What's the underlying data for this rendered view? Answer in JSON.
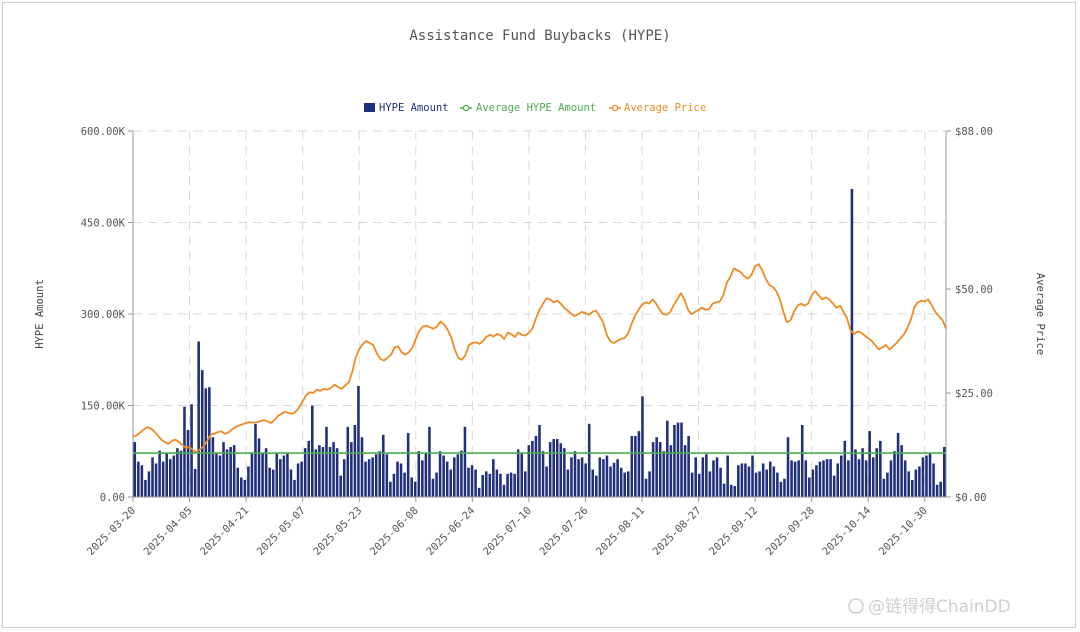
{
  "chart_data": {
    "type": "bar+line",
    "title": "Assistance Fund Buybacks (HYPE)",
    "ylabel_left": "HYPE Amount",
    "ylabel_right": "Average Price",
    "y_left_ticks": [
      "0.00",
      "150.00K",
      "300.00K",
      "450.00K",
      "600.00K"
    ],
    "y_right_ticks": [
      "$0.00",
      "$25.00",
      "$50.00",
      "$88.00"
    ],
    "y_right_tick_values": [
      0,
      25,
      50,
      88
    ],
    "ylim_left": [
      0,
      600000
    ],
    "ylim_right": [
      0,
      88
    ],
    "x_start": "2025-03-20",
    "x_end": "2025-11-05",
    "x_ticks": [
      "2025-03-20",
      "2025-04-05",
      "2025-04-21",
      "2025-05-07",
      "2025-05-23",
      "2025-06-08",
      "2025-06-24",
      "2025-07-10",
      "2025-07-26",
      "2025-08-11",
      "2025-08-27",
      "2025-09-12",
      "2025-09-28",
      "2025-10-14",
      "2025-10-30"
    ],
    "grid": true,
    "legend_position": "top-center",
    "series": [
      {
        "name": "HYPE Amount",
        "type": "bar",
        "color": "#1f2f7a",
        "values": [
          90000,
          58000,
          52000,
          28000,
          42000,
          65000,
          55000,
          76000,
          58000,
          72000,
          62000,
          68000,
          80000,
          76000,
          148000,
          110000,
          152000,
          46000,
          255000,
          208000,
          178000,
          180000,
          98000,
          72000,
          68000,
          90000,
          78000,
          82000,
          85000,
          48000,
          32000,
          28000,
          50000,
          72000,
          120000,
          96000,
          72000,
          80000,
          48000,
          45000,
          72000,
          62000,
          68000,
          72000,
          45000,
          28000,
          55000,
          58000,
          80000,
          92000,
          150000,
          78000,
          85000,
          82000,
          115000,
          82000,
          90000,
          80000,
          35000,
          62000,
          115000,
          90000,
          118000,
          182000,
          98000,
          58000,
          62000,
          65000,
          70000,
          75000,
          102000,
          70000,
          25000,
          38000,
          58000,
          55000,
          40000,
          105000,
          32000,
          25000,
          75000,
          60000,
          72000,
          115000,
          30000,
          40000,
          75000,
          68000,
          58000,
          45000,
          65000,
          70000,
          76000,
          115000,
          48000,
          52000,
          45000,
          15000,
          36000,
          42000,
          38000,
          62000,
          45000,
          38000,
          20000,
          38000,
          40000,
          38000,
          78000,
          72000,
          42000,
          85000,
          92000,
          100000,
          118000,
          75000,
          50000,
          90000,
          95000,
          95000,
          88000,
          80000,
          45000,
          65000,
          75000,
          62000,
          65000,
          55000,
          120000,
          45000,
          35000,
          65000,
          62000,
          68000,
          50000,
          56000,
          62000,
          48000,
          40000,
          42000,
          100000,
          100000,
          108000,
          165000,
          30000,
          42000,
          90000,
          98000,
          90000,
          75000,
          125000,
          85000,
          118000,
          122000,
          122000,
          85000,
          100000,
          40000,
          65000,
          38000,
          65000,
          70000,
          42000,
          60000,
          65000,
          48000,
          22000,
          68000,
          20000,
          18000,
          52000,
          55000,
          55000,
          50000,
          68000,
          40000,
          42000,
          55000,
          45000,
          58000,
          50000,
          40000,
          25000,
          30000,
          98000,
          60000,
          58000,
          60000,
          118000,
          60000,
          32000,
          45000,
          52000,
          58000,
          60000,
          62000,
          62000,
          35000,
          55000,
          68000,
          92000,
          60000,
          505000,
          78000,
          62000,
          80000,
          60000,
          108000,
          65000,
          80000,
          92000,
          30000,
          40000,
          60000,
          75000,
          105000,
          85000,
          60000,
          42000,
          28000,
          45000,
          50000,
          65000,
          68000,
          72000,
          55000,
          20000,
          25000,
          82000
        ]
      },
      {
        "name": "Average HYPE Amount",
        "type": "line",
        "color": "#4caf50",
        "value": 72000
      },
      {
        "name": "Average Price",
        "type": "line",
        "color": "#f08a24",
        "values": [
          14.5,
          14.8,
          15.5,
          16.2,
          16.8,
          16.5,
          15.8,
          14.8,
          13.8,
          13.2,
          12.8,
          13.5,
          13.8,
          13.2,
          12.5,
          11.8,
          12.0,
          11.2,
          10.8,
          11.5,
          12.2,
          13.5,
          15.0,
          15.2,
          15.6,
          15.8,
          15.2,
          15.5,
          16.2,
          16.8,
          17.2,
          17.5,
          17.8,
          18.0,
          17.9,
          18.0,
          18.2,
          18.5,
          18.2,
          17.8,
          18.5,
          19.5,
          20.0,
          20.5,
          20.2,
          20.0,
          20.5,
          21.5,
          23.0,
          24.5,
          25.2,
          25.0,
          25.8,
          25.5,
          26.0,
          25.8,
          26.2,
          27.0,
          26.5,
          26.0,
          26.8,
          27.5,
          30.0,
          33.5,
          35.5,
          36.8,
          37.5,
          37.0,
          36.5,
          34.5,
          33.2,
          32.8,
          33.5,
          34.2,
          36.0,
          36.2,
          34.8,
          34.2,
          34.8,
          35.8,
          38.0,
          40.0,
          41.0,
          41.2,
          40.8,
          40.5,
          41.0,
          42.2,
          41.5,
          40.2,
          38.5,
          35.5,
          33.5,
          33.0,
          34.0,
          36.5,
          37.0,
          37.2,
          36.8,
          37.5,
          38.5,
          39.0,
          38.6,
          39.2,
          38.9,
          38.0,
          39.5,
          39.2,
          38.5,
          39.5,
          39.0,
          38.8,
          39.5,
          40.5,
          43.0,
          45.0,
          46.5,
          47.8,
          47.5,
          46.8,
          47.2,
          46.5,
          45.5,
          44.8,
          44.0,
          43.5,
          44.0,
          44.5,
          44.2,
          43.8,
          44.5,
          44.8,
          43.5,
          42.0,
          39.0,
          37.5,
          37.0,
          37.5,
          38.0,
          38.2,
          39.2,
          41.5,
          43.5,
          45.0,
          46.2,
          46.8,
          46.5,
          47.5,
          46.5,
          45.0,
          44.0,
          43.8,
          44.5,
          46.2,
          47.5,
          49.0,
          47.5,
          45.0,
          44.0,
          44.5,
          45.0,
          45.5,
          45.0,
          45.2,
          46.5,
          46.8,
          47.0,
          48.5,
          51.5,
          53.0,
          55.0,
          54.5,
          54.0,
          53.0,
          52.5,
          53.5,
          55.5,
          56.0,
          54.5,
          52.5,
          51.0,
          50.5,
          49.5,
          47.5,
          44.5,
          42.0,
          42.5,
          44.5,
          46.0,
          46.5,
          46.0,
          46.5,
          48.5,
          49.5,
          48.5,
          47.5,
          48.0,
          47.5,
          46.5,
          45.5,
          46.0,
          44.5,
          43.0,
          40.0,
          39.2,
          39.8,
          39.5,
          38.8,
          38.2,
          37.5,
          36.5,
          35.5,
          36.0,
          36.5,
          35.5,
          36.2,
          37.0,
          38.0,
          39.0,
          40.5,
          42.5,
          45.5,
          46.8,
          47.2,
          47.0,
          47.5,
          46.0,
          44.5,
          43.5,
          42.5,
          40.5
        ]
      }
    ],
    "watermark": "@链得得ChainDD"
  }
}
